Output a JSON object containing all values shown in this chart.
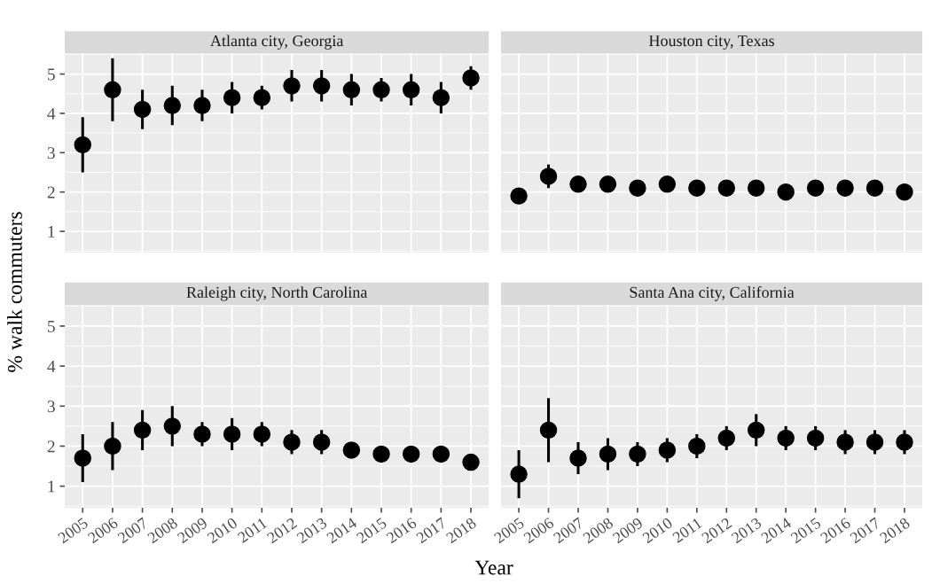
{
  "chart_data": [
    {
      "type": "scatter",
      "title": "Atlanta city, Georgia",
      "ylabel": "% walk commuters",
      "categories": [
        "2005",
        "2006",
        "2007",
        "2008",
        "2009",
        "2010",
        "2011",
        "2012",
        "2013",
        "2014",
        "2015",
        "2016",
        "2017",
        "2018"
      ],
      "values": [
        3.2,
        4.6,
        4.1,
        4.2,
        4.2,
        4.4,
        4.4,
        4.7,
        4.7,
        4.6,
        4.6,
        4.6,
        4.4,
        4.9
      ],
      "errors": [
        0.7,
        0.8,
        0.5,
        0.5,
        0.4,
        0.4,
        0.3,
        0.4,
        0.4,
        0.4,
        0.3,
        0.4,
        0.4,
        0.3
      ],
      "color": "#000000",
      "marker": "circle",
      "ylim": [
        0.46,
        5.53
      ],
      "yticks": [
        1,
        2,
        3,
        4,
        5
      ],
      "grid": true,
      "tick_labels": "y"
    },
    {
      "type": "scatter",
      "title": "Houston city, Texas",
      "categories": [
        "2005",
        "2006",
        "2007",
        "2008",
        "2009",
        "2010",
        "2011",
        "2012",
        "2013",
        "2014",
        "2015",
        "2016",
        "2017",
        "2018"
      ],
      "values": [
        1.9,
        2.4,
        2.2,
        2.2,
        2.1,
        2.2,
        2.1,
        2.1,
        2.1,
        2.0,
        2.1,
        2.1,
        2.1,
        2.0
      ],
      "errors": [
        null,
        0.3,
        null,
        null,
        null,
        null,
        null,
        null,
        null,
        null,
        null,
        null,
        null,
        null
      ],
      "color": "#000000",
      "marker": "circle",
      "ylim": [
        0.46,
        5.53
      ],
      "yticks": [
        1,
        2,
        3,
        4,
        5
      ],
      "grid": true,
      "tick_labels": false
    },
    {
      "type": "scatter",
      "title": "Raleigh city, North Carolina",
      "xlabel": "Year",
      "categories": [
        "2005",
        "2006",
        "2007",
        "2008",
        "2009",
        "2010",
        "2011",
        "2012",
        "2013",
        "2014",
        "2015",
        "2016",
        "2017",
        "2018"
      ],
      "values": [
        1.7,
        2.0,
        2.4,
        2.5,
        2.3,
        2.3,
        2.3,
        2.1,
        2.1,
        1.9,
        1.8,
        1.8,
        1.8,
        1.6
      ],
      "errors": [
        0.6,
        0.6,
        0.5,
        0.5,
        0.3,
        0.4,
        0.3,
        0.3,
        0.3,
        null,
        null,
        null,
        null,
        null
      ],
      "color": "#000000",
      "marker": "circle",
      "ylim": [
        0.46,
        5.53
      ],
      "yticks": [
        1,
        2,
        3,
        4,
        5
      ],
      "grid": true
    },
    {
      "type": "scatter",
      "title": "Santa Ana city, California",
      "categories": [
        "2005",
        "2006",
        "2007",
        "2008",
        "2009",
        "2010",
        "2011",
        "2012",
        "2013",
        "2014",
        "2015",
        "2016",
        "2017",
        "2018"
      ],
      "values": [
        1.3,
        2.4,
        1.7,
        1.8,
        1.8,
        1.9,
        2.0,
        2.2,
        2.4,
        2.2,
        2.2,
        2.1,
        2.1,
        2.1
      ],
      "errors": [
        0.6,
        0.8,
        0.4,
        0.4,
        0.3,
        0.3,
        0.3,
        0.3,
        0.4,
        0.3,
        0.3,
        0.3,
        0.3,
        0.3
      ],
      "color": "#000000",
      "marker": "circle",
      "ylim": [
        0.46,
        5.53
      ],
      "yticks": [
        1,
        2,
        3,
        4,
        5
      ],
      "grid": true,
      "tick_labels": "x"
    }
  ]
}
